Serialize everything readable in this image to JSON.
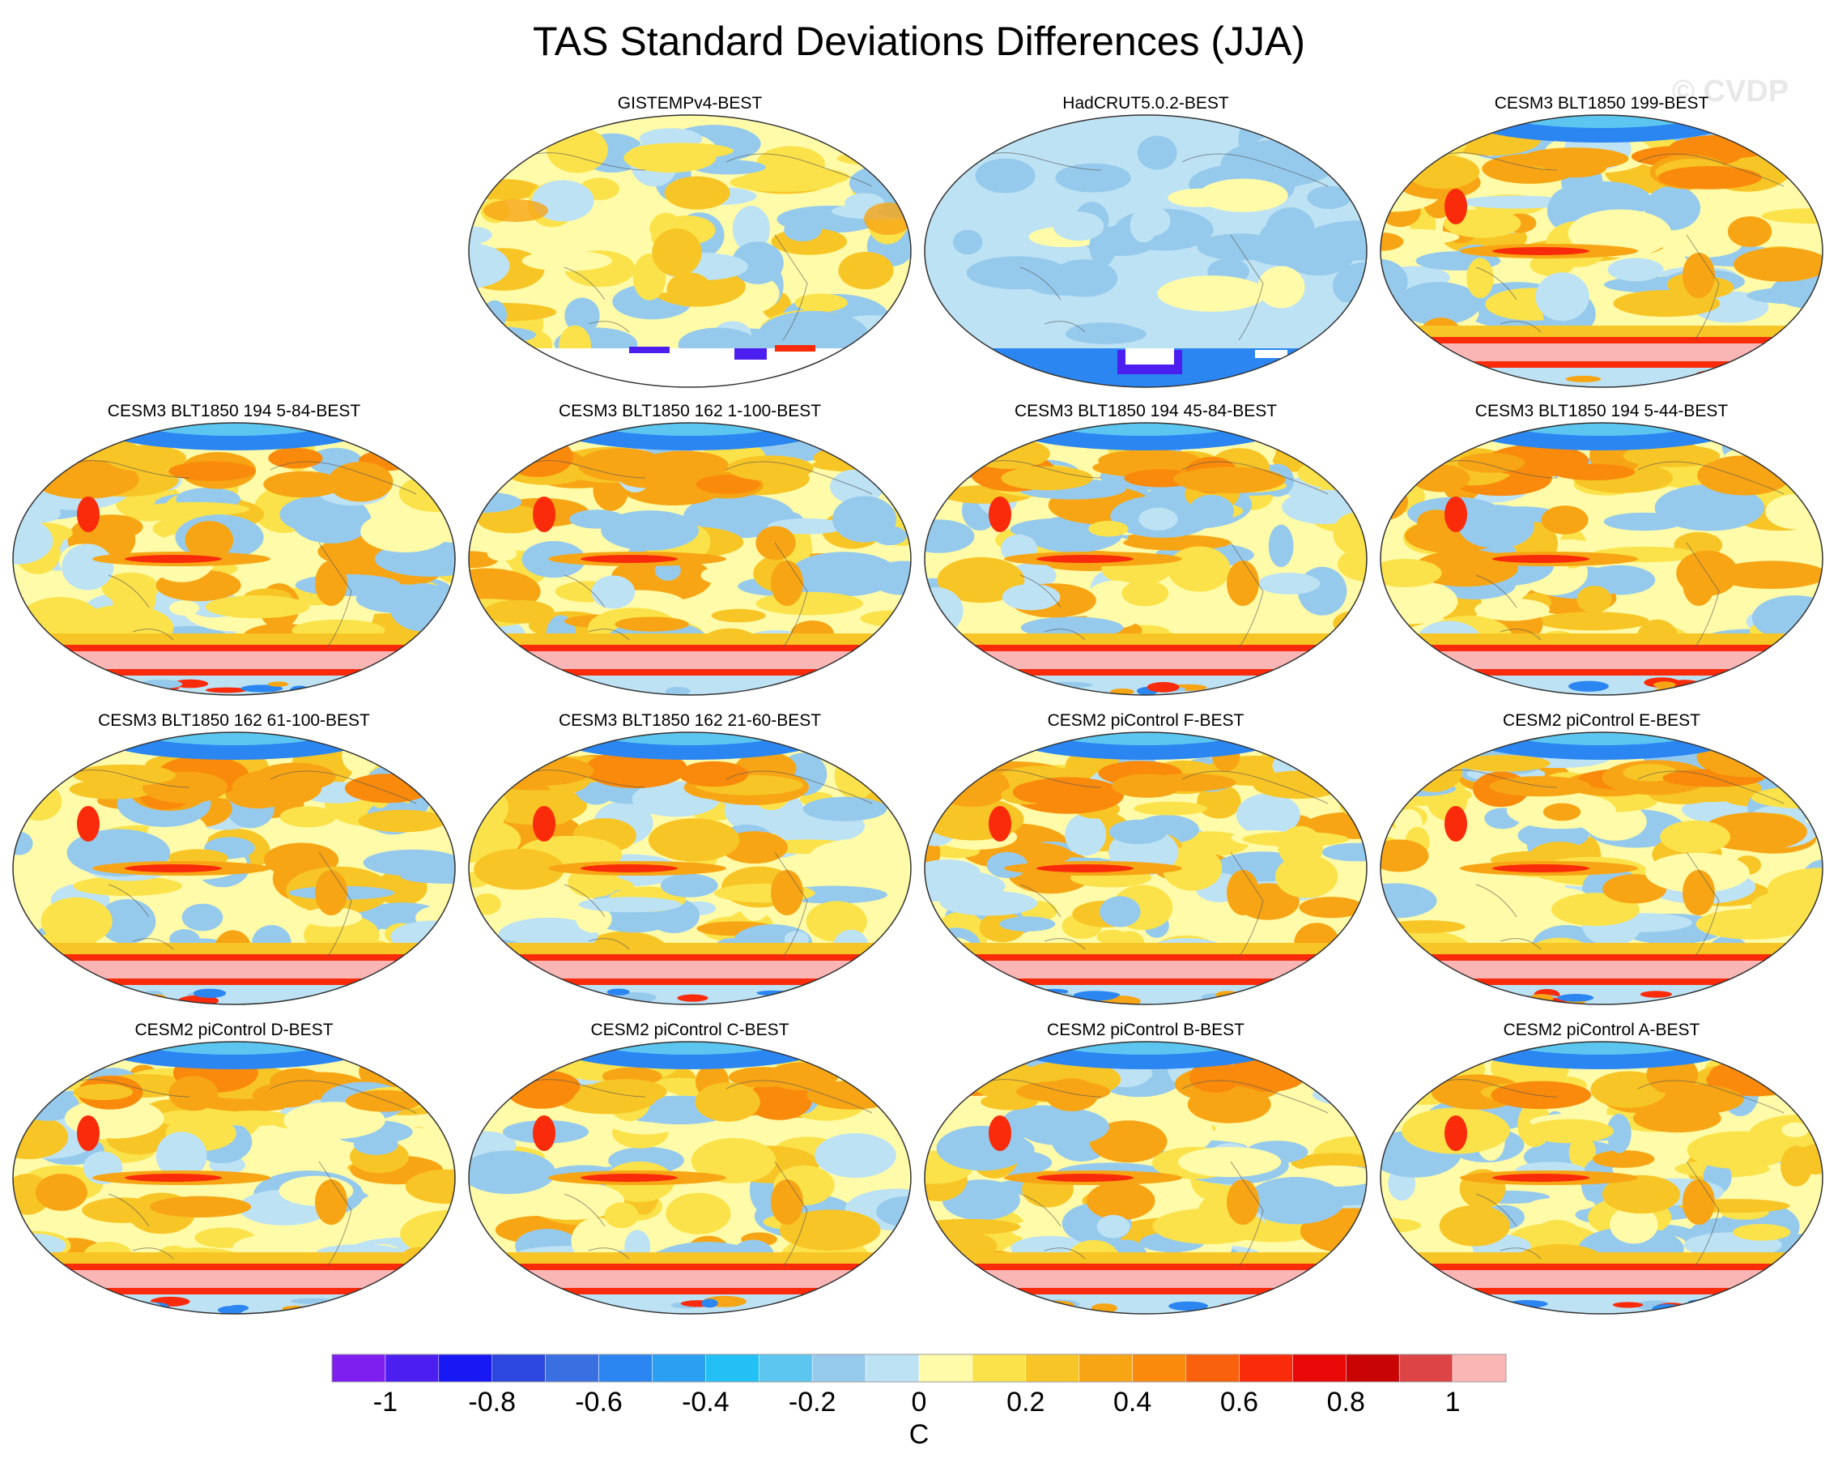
{
  "title": "TAS Standard Deviations Differences (JJA)",
  "watermark": "© CVDP",
  "panels": [
    {
      "label": "GISTEMPv4-BEST",
      "style": "obs"
    },
    {
      "label": "HadCRUT5.0.2-BEST",
      "style": "had"
    },
    {
      "label": "CESM3 BLT1850 199-BEST",
      "style": "model"
    },
    {
      "label": "CESM3 BLT1850 194 5-84-BEST",
      "style": "model"
    },
    {
      "label": "CESM3 BLT1850 162 1-100-BEST",
      "style": "model"
    },
    {
      "label": "CESM3 BLT1850 194 45-84-BEST",
      "style": "model"
    },
    {
      "label": "CESM3 BLT1850 194 5-44-BEST",
      "style": "model"
    },
    {
      "label": "CESM3 BLT1850 162 61-100-BEST",
      "style": "model"
    },
    {
      "label": "CESM3 BLT1850 162 21-60-BEST",
      "style": "model"
    },
    {
      "label": "CESM2 piControl F-BEST",
      "style": "model"
    },
    {
      "label": "CESM2 piControl E-BEST",
      "style": "model"
    },
    {
      "label": "CESM2 piControl D-BEST",
      "style": "model"
    },
    {
      "label": "CESM2 piControl C-BEST",
      "style": "model"
    },
    {
      "label": "CESM2 piControl B-BEST",
      "style": "model"
    },
    {
      "label": "CESM2 piControl A-BEST",
      "style": "model"
    }
  ],
  "colorbar": {
    "colors": [
      "#7f1fef",
      "#4d1ef0",
      "#1818f5",
      "#2c46e0",
      "#3a6fe2",
      "#2b86f2",
      "#2ba0f2",
      "#22c0f5",
      "#5cc6f0",
      "#96caec",
      "#bde2f4",
      "#fffba8",
      "#fbe24a",
      "#f8c526",
      "#f7a514",
      "#f98a0b",
      "#f9610c",
      "#fa2b0a",
      "#e80808",
      "#c80405",
      "#dc4446",
      "#fab5b5"
    ],
    "labels": [
      "-1",
      "-0.8",
      "-0.6",
      "-0.4",
      "-0.2",
      "0",
      "0.2",
      "0.4",
      "0.6",
      "0.8",
      "1"
    ],
    "unit": "C"
  }
}
